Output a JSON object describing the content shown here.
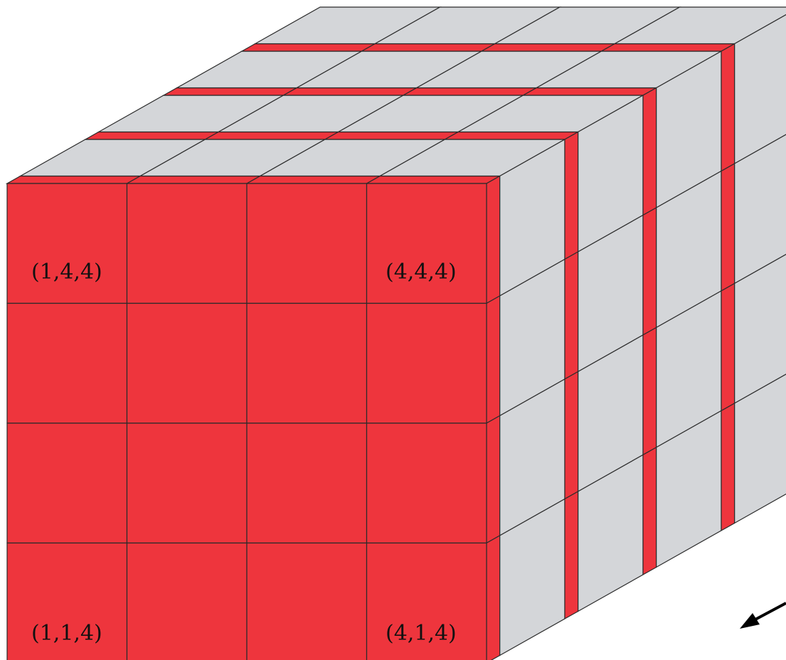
{
  "diagram": {
    "kind": "4x4x4 voxel cube, front layer (z = 4) highlighted",
    "colors": {
      "front_face": "#ee353d",
      "grey_cell": "#d4d6d9",
      "grid_line": "#2b2b2b",
      "background": "#ffffff",
      "arrow": "#000000"
    },
    "labels": {
      "top_left": "(1,4,4)",
      "top_right": "(4,4,4)",
      "bottom_left": "(1,1,4)",
      "bottom_right": "(4,1,4)"
    },
    "arrow": {
      "icon": "arrow-down-left-icon"
    }
  }
}
